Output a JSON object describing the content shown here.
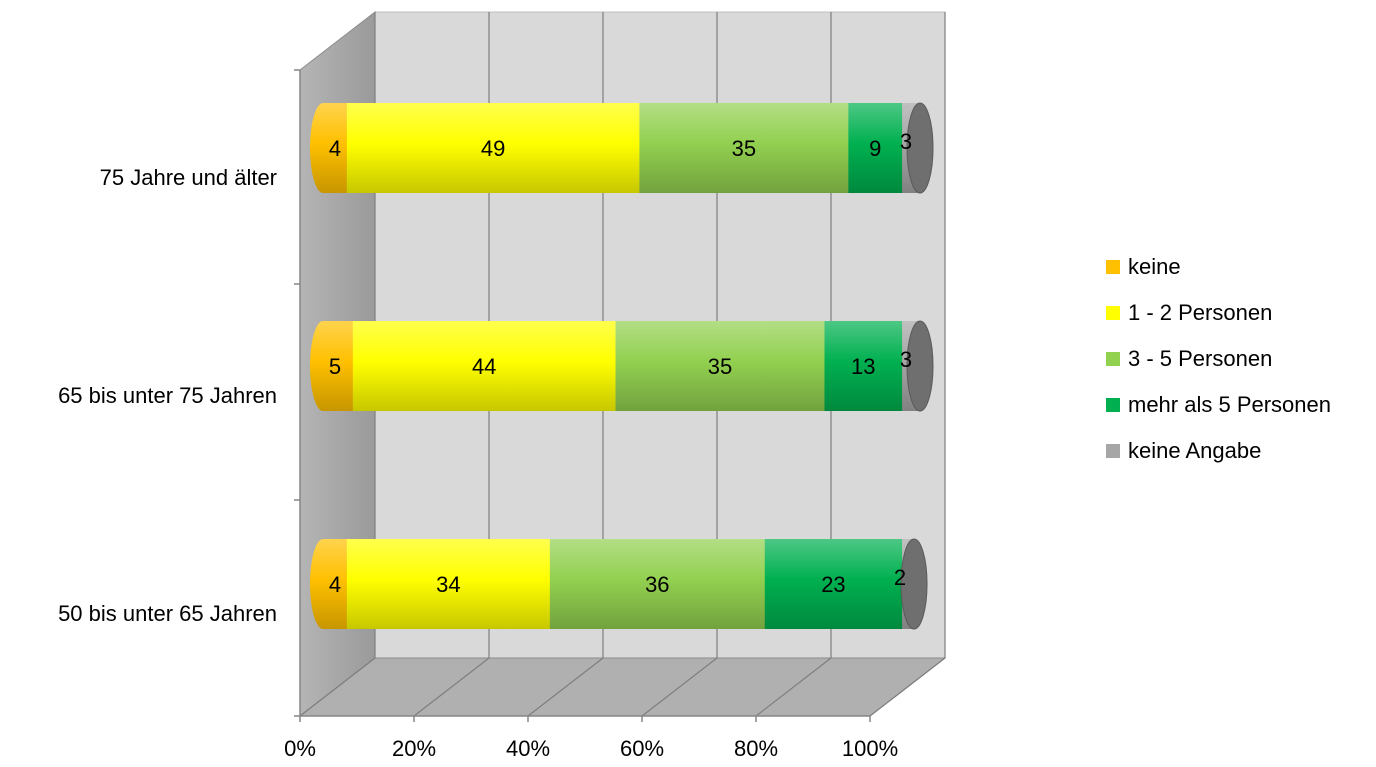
{
  "chart_data": {
    "type": "bar",
    "orientation": "horizontal",
    "stacked": "percent",
    "style": "3d-cylinder",
    "categories": [
      "75 Jahre und älter",
      "65 bis unter 75 Jahren",
      "50 bis unter 65 Jahren"
    ],
    "series": [
      {
        "name": "keine",
        "color": "#FFC000",
        "values": [
          4,
          5,
          4
        ]
      },
      {
        "name": "1 - 2 Personen",
        "color": "#FFFF00",
        "values": [
          49,
          44,
          34
        ]
      },
      {
        "name": "3 - 5 Personen",
        "color": "#92D050",
        "values": [
          35,
          35,
          36
        ]
      },
      {
        "name": "mehr als 5 Personen",
        "color": "#00B050",
        "values": [
          9,
          13,
          23
        ]
      },
      {
        "name": "keine Angabe",
        "color": "#A6A6A6",
        "values": [
          3,
          3,
          2
        ]
      }
    ],
    "xlim": [
      0,
      100
    ],
    "xticks": [
      "0%",
      "20%",
      "40%",
      "60%",
      "80%",
      "100%"
    ],
    "grid": true,
    "legend": "right"
  }
}
